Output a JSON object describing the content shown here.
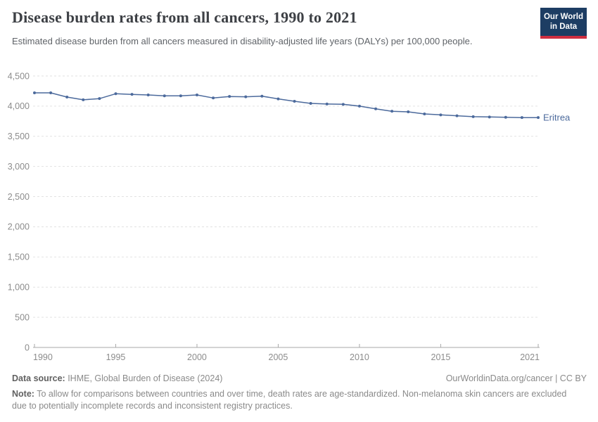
{
  "header": {
    "title": "Disease burden rates from all cancers, 1990 to 2021",
    "subtitle": "Estimated disease burden from all cancers measured in disability-adjusted life years (DALYs) per 100,000 people.",
    "logo": {
      "line1": "Our World",
      "line2": "in Data"
    }
  },
  "chart_data": {
    "type": "line",
    "title": "Disease burden rates from all cancers, 1990 to 2021",
    "ylabel": "DALYs per 100,000 people",
    "xlabel": "",
    "x": [
      1990,
      1991,
      1992,
      1993,
      1994,
      1995,
      1996,
      1997,
      1998,
      1999,
      2000,
      2001,
      2002,
      2003,
      2004,
      2005,
      2006,
      2007,
      2008,
      2009,
      2010,
      2011,
      2012,
      2013,
      2014,
      2015,
      2016,
      2017,
      2018,
      2019,
      2020,
      2021
    ],
    "series": [
      {
        "name": "Eritrea",
        "color": "#4c6a9c",
        "values": [
          4220,
          4220,
          4150,
          4105,
          4125,
          4205,
          4195,
          4185,
          4170,
          4170,
          4185,
          4135,
          4160,
          4155,
          4165,
          4120,
          4080,
          4045,
          4035,
          4030,
          4000,
          3955,
          3915,
          3905,
          3870,
          3855,
          3840,
          3825,
          3820,
          3815,
          3810,
          3810
        ]
      }
    ],
    "ylim": [
      0,
      4500
    ],
    "yticks": [
      0,
      500,
      1000,
      1500,
      2000,
      2500,
      3000,
      3500,
      4000,
      4500
    ],
    "ytick_labels": [
      "0",
      "500",
      "1,000",
      "1,500",
      "2,000",
      "2,500",
      "3,000",
      "3,500",
      "4,000",
      "4,500"
    ],
    "xticks": [
      1990,
      1995,
      2000,
      2005,
      2010,
      2015,
      2021
    ],
    "xtick_labels": [
      "1990",
      "1995",
      "2000",
      "2005",
      "2010",
      "2015",
      "2021"
    ],
    "grid": "horizontal-dashed",
    "legend_position": "end-of-line-label"
  },
  "footer": {
    "source_label": "Data source:",
    "source_text": " IHME, Global Burden of Disease (2024)",
    "credit": "OurWorldinData.org/cancer | CC BY",
    "note_label": "Note:",
    "note_text": " To allow for comparisons between countries and over time, death rates are age-standardized. Non-melanoma skin cancers are excluded due to potentially incomplete records and inconsistent registry practices."
  },
  "colors": {
    "line": "#4c6a9c",
    "entity_label": "#4c6a9c",
    "logo_bg": "#1d3d63",
    "logo_bar": "#cf2e41",
    "grid": "#e2e2e2",
    "axis": "#a9a9a9",
    "tick_text": "#8c8c8c",
    "title_text": "#3d4045",
    "subtitle_text": "#5f6368",
    "footer_text": "#8a8a8a"
  }
}
